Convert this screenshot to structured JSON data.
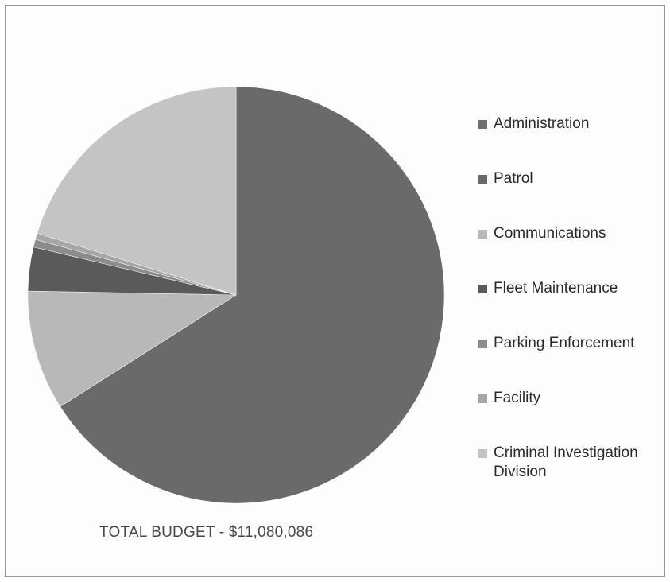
{
  "chart_data": {
    "type": "pie",
    "title": "",
    "slices": [
      {
        "label": "Administration",
        "value": 0,
        "color": "#6f6f6f"
      },
      {
        "label": "Patrol",
        "value": 66.0,
        "color": "#6a6a6a"
      },
      {
        "label": "Communications",
        "value": 9.3,
        "color": "#b8b8b8"
      },
      {
        "label": "Fleet Maintenance",
        "value": 3.4,
        "color": "#5a5a5a"
      },
      {
        "label": "Parking Enforcement",
        "value": 0.6,
        "color": "#8c8c8c"
      },
      {
        "label": "Facility",
        "value": 0.5,
        "color": "#a6a6a6"
      },
      {
        "label": "Criminal Investigation Division",
        "value": 20.2,
        "color": "#c4c4c4"
      }
    ],
    "legend_position": "right",
    "start_angle_deg": 0,
    "direction": "clockwise"
  },
  "footer": {
    "total_text": "TOTAL BUDGET - $11,080,086"
  }
}
